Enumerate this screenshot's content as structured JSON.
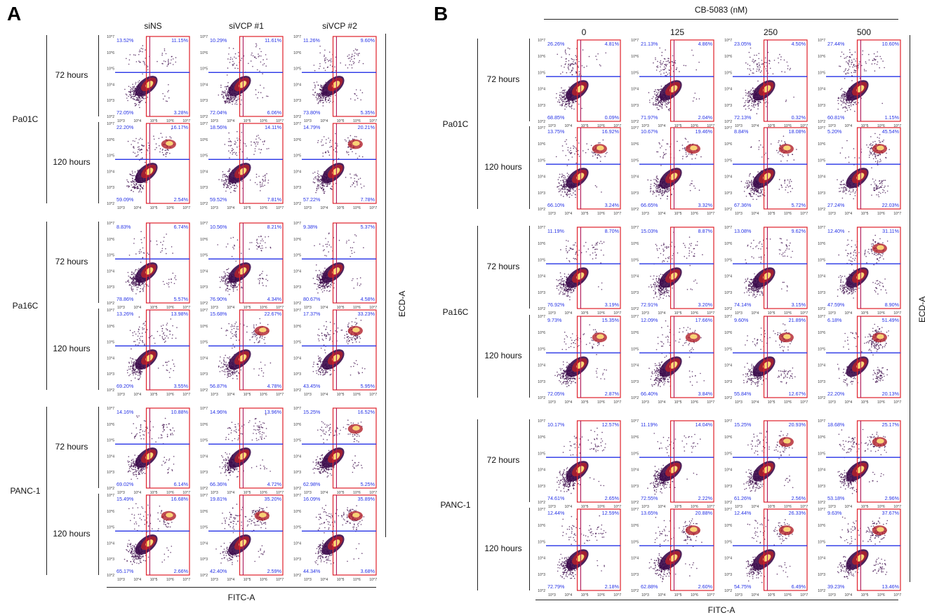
{
  "figure": {
    "panels": [
      {
        "letter": "A",
        "x_axis_label": "FITC-A",
        "y_axis_label": "ECD-A",
        "header_group": "",
        "columns": [
          "siNS",
          "siVCP #1",
          "siVCP #2"
        ],
        "groups": [
          {
            "cell_line": "Pa01C",
            "rows": [
              {
                "time": "72 hours",
                "quadrants": [
                  [
                    "13.52%",
                    "11.15%",
                    "72.05%",
                    "3.28%"
                  ],
                  [
                    "10.29%",
                    "11.61%",
                    "72.04%",
                    "6.06%"
                  ],
                  [
                    "11.26%",
                    "9.60%",
                    "73.80%",
                    "5.35%"
                  ]
                ]
              },
              {
                "time": "120 hours",
                "quadrants": [
                  [
                    "22.20%",
                    "16.17%",
                    "59.09%",
                    "2.54%"
                  ],
                  [
                    "18.56%",
                    "14.11%",
                    "59.52%",
                    "7.81%"
                  ],
                  [
                    "14.79%",
                    "20.21%",
                    "57.22%",
                    "7.78%"
                  ]
                ]
              }
            ]
          },
          {
            "cell_line": "Pa16C",
            "rows": [
              {
                "time": "72 hours",
                "quadrants": [
                  [
                    "8.83%",
                    "6.74%",
                    "78.86%",
                    "5.57%"
                  ],
                  [
                    "10.56%",
                    "8.21%",
                    "76.90%",
                    "4.34%"
                  ],
                  [
                    "9.38%",
                    "5.37%",
                    "80.67%",
                    "4.58%"
                  ]
                ]
              },
              {
                "time": "120 hours",
                "quadrants": [
                  [
                    "13.26%",
                    "13.98%",
                    "69.20%",
                    "3.55%"
                  ],
                  [
                    "15.68%",
                    "22.67%",
                    "56.87%",
                    "4.78%"
                  ],
                  [
                    "17.37%",
                    "33.23%",
                    "43.45%",
                    "5.95%"
                  ]
                ]
              }
            ]
          },
          {
            "cell_line": "PANC-1",
            "rows": [
              {
                "time": "72 hours",
                "quadrants": [
                  [
                    "14.16%",
                    "10.88%",
                    "69.02%",
                    "6.14%"
                  ],
                  [
                    "14.96%",
                    "13.96%",
                    "66.36%",
                    "4.72%"
                  ],
                  [
                    "15.25%",
                    "16.52%",
                    "62.98%",
                    "5.25%"
                  ]
                ]
              },
              {
                "time": "120 hours",
                "quadrants": [
                  [
                    "15.49%",
                    "16.68%",
                    "65.17%",
                    "2.66%"
                  ],
                  [
                    "19.81%",
                    "35.20%",
                    "42.40%",
                    "2.59%"
                  ],
                  [
                    "16.09%",
                    "35.89%",
                    "44.34%",
                    "3.68%"
                  ]
                ]
              }
            ]
          }
        ]
      },
      {
        "letter": "B",
        "x_axis_label": "FITC-A",
        "y_axis_label": "ECD-A",
        "header_group": "CB-5083 (nM)",
        "columns": [
          "0",
          "125",
          "250",
          "500"
        ],
        "groups": [
          {
            "cell_line": "Pa01C",
            "rows": [
              {
                "time": "72 hours",
                "quadrants": [
                  [
                    "26.26%",
                    "4.81%",
                    "68.85%",
                    "0.09%"
                  ],
                  [
                    "21.13%",
                    "4.86%",
                    "71.97%",
                    "2.04%"
                  ],
                  [
                    "23.05%",
                    "4.50%",
                    "72.13%",
                    "0.32%"
                  ],
                  [
                    "27.44%",
                    "10.60%",
                    "60.81%",
                    "1.15%"
                  ]
                ]
              },
              {
                "time": "120 hours",
                "quadrants": [
                  [
                    "13.75%",
                    "16.92%",
                    "66.10%",
                    "3.24%"
                  ],
                  [
                    "10.67%",
                    "19.46%",
                    "66.65%",
                    "3.32%"
                  ],
                  [
                    "8.84%",
                    "18.08%",
                    "67.36%",
                    "5.72%"
                  ],
                  [
                    "5.20%",
                    "45.54%",
                    "27.24%",
                    "22.03%"
                  ]
                ]
              }
            ]
          },
          {
            "cell_line": "Pa16C",
            "rows": [
              {
                "time": "72 hours",
                "quadrants": [
                  [
                    "11.19%",
                    "8.70%",
                    "76.92%",
                    "3.19%"
                  ],
                  [
                    "15.03%",
                    "8.87%",
                    "72.91%",
                    "3.20%"
                  ],
                  [
                    "13.08%",
                    "9.62%",
                    "74.14%",
                    "3.15%"
                  ],
                  [
                    "12.40%",
                    "31.11%",
                    "47.59%",
                    "8.90%"
                  ]
                ]
              },
              {
                "time": "120 hours",
                "quadrants": [
                  [
                    "9.73%",
                    "15.35%",
                    "72.05%",
                    "2.87%"
                  ],
                  [
                    "12.09%",
                    "17.66%",
                    "66.40%",
                    "3.84%"
                  ],
                  [
                    "9.60%",
                    "21.89%",
                    "55.84%",
                    "12.67%"
                  ],
                  [
                    "6.18%",
                    "51.49%",
                    "22.20%",
                    "20.13%"
                  ]
                ]
              }
            ]
          },
          {
            "cell_line": "PANC-1",
            "rows": [
              {
                "time": "72 hours",
                "quadrants": [
                  [
                    "10.17%",
                    "12.57%",
                    "74.61%",
                    "2.65%"
                  ],
                  [
                    "11.19%",
                    "14.04%",
                    "72.55%",
                    "2.22%"
                  ],
                  [
                    "15.25%",
                    "20.93%",
                    "61.26%",
                    "2.56%"
                  ],
                  [
                    "18.68%",
                    "25.17%",
                    "53.18%",
                    "2.96%"
                  ]
                ]
              },
              {
                "time": "120 hours",
                "quadrants": [
                  [
                    "12.44%",
                    "12.59%",
                    "72.79%",
                    "2.18%"
                  ],
                  [
                    "13.65%",
                    "20.88%",
                    "62.88%",
                    "2.60%"
                  ],
                  [
                    "12.44%",
                    "26.33%",
                    "54.75%",
                    "6.49%"
                  ],
                  [
                    "9.63%",
                    "37.67%",
                    "39.23%",
                    "13.46%"
                  ]
                ]
              }
            ]
          }
        ]
      }
    ],
    "tick_labels": {
      "x": [
        "10^3",
        "10^4",
        "10^5",
        "10^6",
        "10^7"
      ],
      "y": [
        "10^7",
        "10^6",
        "10^5",
        "10^4",
        "10^3",
        "10^2"
      ]
    },
    "colors": {
      "gate_box": "#e0202a",
      "quad_horizontal": "#2633e6",
      "quad_vertical": "#b01a5a",
      "quadrant_text": "#2633e6",
      "density_low": "#3b0a4a",
      "density_mid": "#b2202a",
      "density_high": "#ffe27a"
    }
  }
}
